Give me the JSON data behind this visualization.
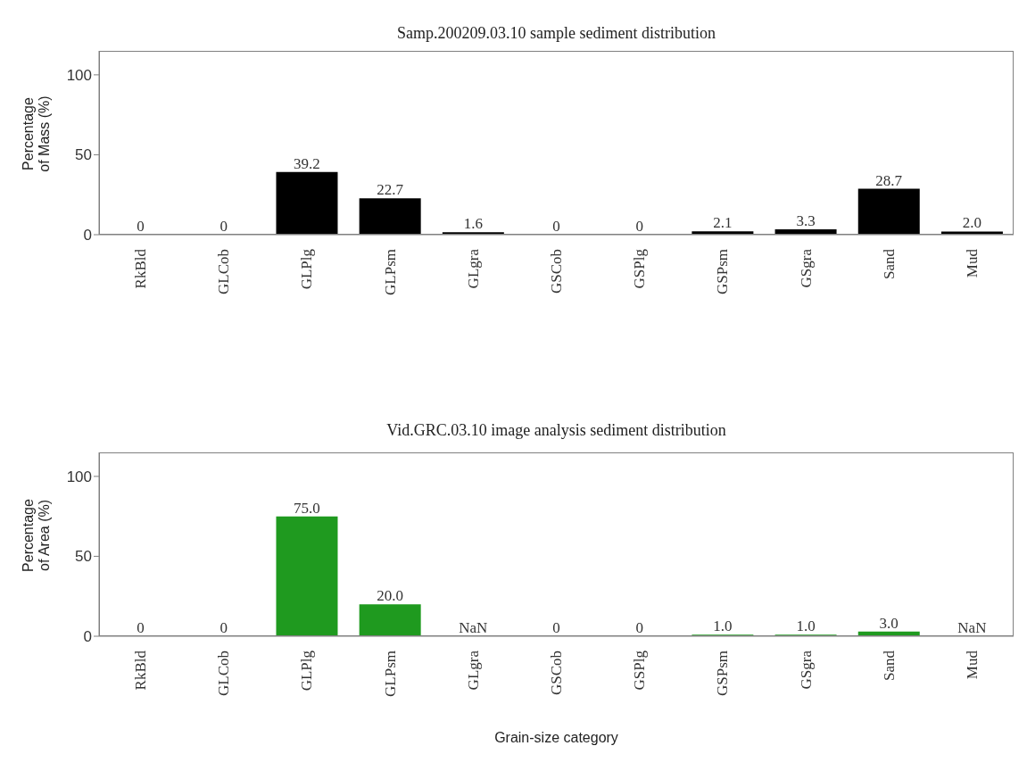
{
  "chart_data": [
    {
      "type": "bar",
      "title": "Samp.200209.03.10  sample sediment distribution",
      "ylabel": "Percentage of Mass (%)",
      "categories": [
        "RkBld",
        "GLCob",
        "GLPlg",
        "GLPsm",
        "GLgra",
        "GSCob",
        "GSPlg",
        "GSPsm",
        "GSgra",
        "Sand",
        "Mud"
      ],
      "values": [
        0,
        0,
        39.2,
        22.7,
        1.6,
        0,
        0,
        2.1,
        3.3,
        28.7,
        2.0
      ],
      "value_labels": [
        "0",
        "0",
        "39.2",
        "22.7",
        "1.6",
        "0",
        "0",
        "2.1",
        "3.3",
        "28.7",
        "2.0"
      ],
      "color": "#000000",
      "ylim": [
        0,
        115
      ],
      "yticks": [
        0,
        50,
        100
      ]
    },
    {
      "type": "bar",
      "title": "Vid.GRC.03.10  image analysis sediment distribution",
      "ylabel": "Percentage of Area (%)",
      "xlabel": "Grain-size category",
      "categories": [
        "RkBld",
        "GLCob",
        "GLPlg",
        "GLPsm",
        "GLgra",
        "GSCob",
        "GSPlg",
        "GSPsm",
        "GSgra",
        "Sand",
        "Mud"
      ],
      "values": [
        0,
        0,
        75.0,
        20.0,
        null,
        0,
        0,
        1.0,
        1.0,
        3.0,
        null
      ],
      "value_labels": [
        "0",
        "0",
        "75.0",
        "20.0",
        "NaN",
        "0",
        "0",
        "1.0",
        "1.0",
        "3.0",
        "NaN"
      ],
      "color": "#1f9a1f",
      "ylim": [
        0,
        115
      ],
      "yticks": [
        0,
        50,
        100
      ]
    }
  ]
}
